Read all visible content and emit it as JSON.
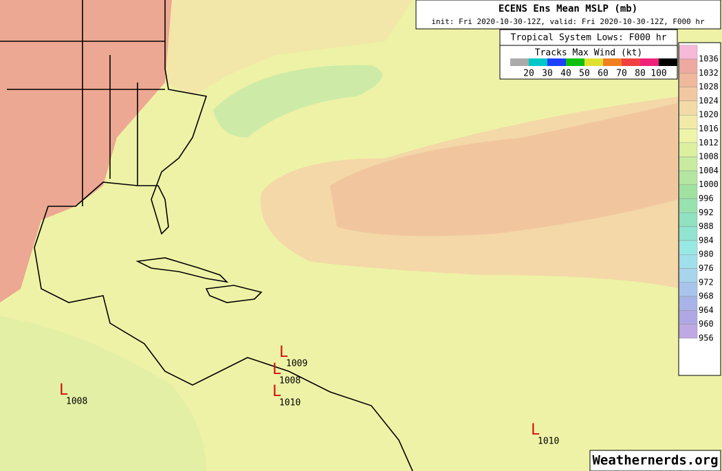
{
  "header": {
    "title": "ECENS Ens Mean MSLP (mb)",
    "subtitle": "init: Fri 2020-10-30-12Z, valid: Fri 2020-10-30-12Z, F000 hr"
  },
  "tracks_legend": {
    "title": "Tropical System Lows: F000 hr",
    "subtitle": "Tracks Max Wind (kt)",
    "colors": [
      "#aaaaaa",
      "#00c8c8",
      "#2040ff",
      "#10c010",
      "#e0e030",
      "#f08020",
      "#f04040",
      "#f0207a",
      "#000000"
    ],
    "labels": [
      20,
      30,
      40,
      50,
      60,
      70,
      80,
      100
    ]
  },
  "colorbar": {
    "levels": [
      1036,
      1032,
      1028,
      1024,
      1020,
      1016,
      1012,
      1008,
      1004,
      1000,
      996,
      992,
      988,
      984,
      980,
      976,
      972,
      968,
      964,
      960,
      956
    ],
    "colors": [
      "#f7b9d8",
      "#eea9a0",
      "#f0b89c",
      "#f2c8a0",
      "#f3dba8",
      "#f2eba8",
      "#eef5a8",
      "#dcf0a0",
      "#c8eba0",
      "#b4e6a0",
      "#a0e2a0",
      "#98e2b0",
      "#90e2c0",
      "#90e4d0",
      "#98e8e4",
      "#a0e0ec",
      "#a8d4ec",
      "#a8c4ec",
      "#a8b4e8",
      "#b0a8e4",
      "#c0a8e4"
    ]
  },
  "lows": [
    {
      "symbol": "L",
      "value": 1009
    },
    {
      "symbol": "L",
      "value": 1008
    },
    {
      "symbol": "L",
      "value": 1010
    },
    {
      "symbol": "L",
      "value": 1008
    },
    {
      "symbol": "L",
      "value": 1010
    }
  ],
  "low_color": "#d01010",
  "watermark": "Weathernerds.org"
}
